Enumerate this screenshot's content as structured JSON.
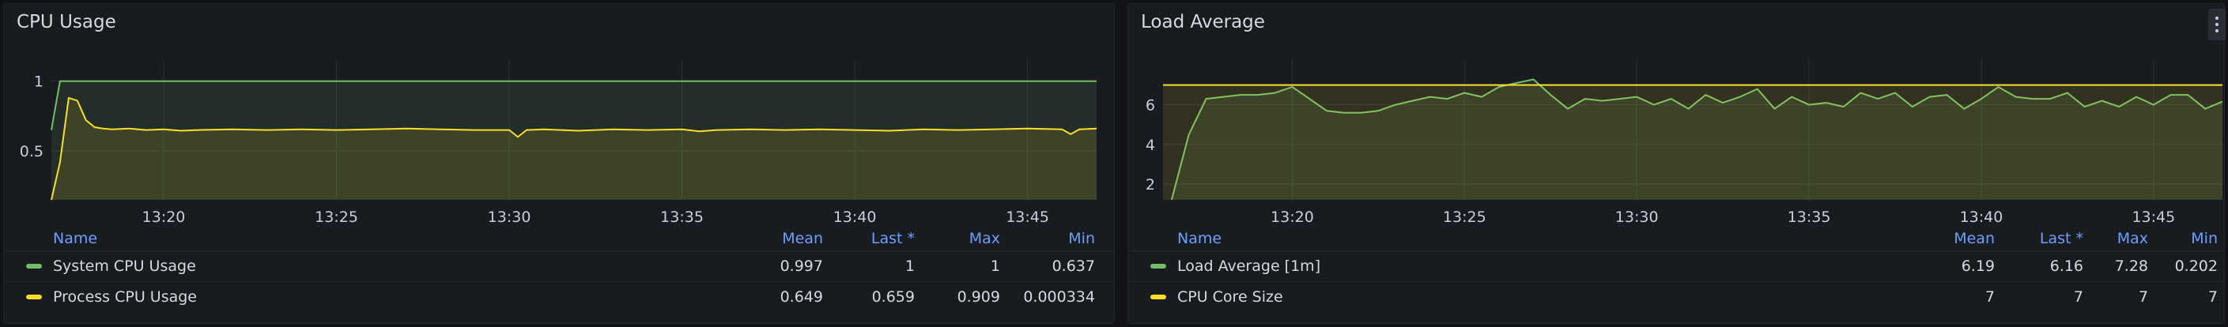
{
  "panels": {
    "cpu": {
      "title": "CPU Usage",
      "columns": {
        "name": "Name",
        "mean": "Mean",
        "last": "Last *",
        "max": "Max",
        "min": "Min"
      },
      "rows": [
        {
          "name": "System CPU Usage",
          "color": "#73bf69",
          "mean": "0.997",
          "last": "1",
          "max": "1",
          "min": "0.637"
        },
        {
          "name": "Process CPU Usage",
          "color": "#fade2a",
          "mean": "0.649",
          "last": "0.659",
          "max": "0.909",
          "min": "0.000334"
        }
      ]
    },
    "load": {
      "title": "Load Average",
      "menu_icon": "kebab-menu-icon",
      "columns": {
        "name": "Name",
        "mean": "Mean",
        "last": "Last *",
        "max": "Max",
        "min": "Min"
      },
      "rows": [
        {
          "name": "Load Average [1m]",
          "color": "#73bf69",
          "mean": "6.19",
          "last": "6.16",
          "max": "7.28",
          "min": "0.202"
        },
        {
          "name": "CPU Core Size",
          "color": "#fade2a",
          "mean": "7",
          "last": "7",
          "max": "7",
          "min": "7"
        }
      ]
    }
  },
  "chart_data": [
    {
      "type": "line",
      "title": "CPU Usage",
      "x_ticks": [
        "13:20",
        "13:25",
        "13:30",
        "13:35",
        "13:40",
        "13:45"
      ],
      "x_range": [
        "13:16:45",
        "13:47:00"
      ],
      "y_ticks": [
        "0.5",
        "1"
      ],
      "ylim": [
        0.15,
        1.1
      ],
      "grid": true,
      "legend_placement": "bottom",
      "series": [
        {
          "name": "System CPU Usage",
          "color": "#73bf69",
          "x": [
            "13:16:45",
            "13:17:00",
            "13:47:00"
          ],
          "values": [
            0.65,
            1.0,
            1.0
          ]
        },
        {
          "name": "Process CPU Usage",
          "color": "#fade2a",
          "x": [
            "13:16:45",
            "13:17:00",
            "13:17:15",
            "13:17:30",
            "13:17:45",
            "13:18:00",
            "13:18:15",
            "13:18:30",
            "13:19:00",
            "13:19:30",
            "13:20:00",
            "13:20:30",
            "13:21:00",
            "13:22:00",
            "13:23:00",
            "13:24:00",
            "13:25:00",
            "13:26:00",
            "13:27:00",
            "13:28:00",
            "13:29:00",
            "13:30:00",
            "13:30:15",
            "13:30:30",
            "13:31:00",
            "13:32:00",
            "13:33:00",
            "13:34:00",
            "13:35:00",
            "13:35:30",
            "13:36:00",
            "13:37:00",
            "13:38:00",
            "13:39:00",
            "13:40:00",
            "13:41:00",
            "13:42:00",
            "13:43:00",
            "13:44:00",
            "13:45:00",
            "13:46:00",
            "13:46:15",
            "13:46:30",
            "13:47:00"
          ],
          "values": [
            0.15,
            0.42,
            0.88,
            0.86,
            0.72,
            0.67,
            0.66,
            0.655,
            0.66,
            0.65,
            0.655,
            0.645,
            0.65,
            0.655,
            0.65,
            0.655,
            0.65,
            0.655,
            0.66,
            0.655,
            0.65,
            0.65,
            0.6,
            0.65,
            0.655,
            0.645,
            0.655,
            0.65,
            0.655,
            0.64,
            0.65,
            0.655,
            0.65,
            0.655,
            0.65,
            0.645,
            0.655,
            0.65,
            0.655,
            0.66,
            0.655,
            0.62,
            0.655,
            0.66
          ]
        }
      ]
    },
    {
      "type": "line",
      "title": "Load Average",
      "x_ticks": [
        "13:20",
        "13:25",
        "13:30",
        "13:35",
        "13:40",
        "13:45"
      ],
      "x_range": [
        "13:16:15",
        "13:47:00"
      ],
      "y_ticks": [
        "2",
        "4",
        "6"
      ],
      "ylim": [
        1.2,
        7.9
      ],
      "grid": true,
      "legend_placement": "bottom",
      "series": [
        {
          "name": "Load Average [1m]",
          "color": "#73bf69",
          "x": [
            "13:16:30",
            "13:17:00",
            "13:17:30",
            "13:18:00",
            "13:18:30",
            "13:19:00",
            "13:19:30",
            "13:20:00",
            "13:20:30",
            "13:21:00",
            "13:21:30",
            "13:22:00",
            "13:22:30",
            "13:23:00",
            "13:23:30",
            "13:24:00",
            "13:24:30",
            "13:25:00",
            "13:25:30",
            "13:26:00",
            "13:26:30",
            "13:27:00",
            "13:27:30",
            "13:28:00",
            "13:28:30",
            "13:29:00",
            "13:29:30",
            "13:30:00",
            "13:30:30",
            "13:31:00",
            "13:31:30",
            "13:32:00",
            "13:32:30",
            "13:33:00",
            "13:33:30",
            "13:34:00",
            "13:34:30",
            "13:35:00",
            "13:35:30",
            "13:36:00",
            "13:36:30",
            "13:37:00",
            "13:37:30",
            "13:38:00",
            "13:38:30",
            "13:39:00",
            "13:39:30",
            "13:40:00",
            "13:40:30",
            "13:41:00",
            "13:41:30",
            "13:42:00",
            "13:42:30",
            "13:43:00",
            "13:43:30",
            "13:44:00",
            "13:44:30",
            "13:45:00",
            "13:45:30",
            "13:46:00",
            "13:46:30",
            "13:47:00"
          ],
          "values": [
            1.2,
            4.5,
            6.3,
            6.4,
            6.5,
            6.5,
            6.6,
            6.9,
            6.3,
            5.7,
            5.6,
            5.6,
            5.7,
            6.0,
            6.2,
            6.4,
            6.3,
            6.6,
            6.4,
            6.9,
            7.1,
            7.28,
            6.5,
            5.8,
            6.3,
            6.2,
            6.3,
            6.4,
            6.0,
            6.3,
            5.8,
            6.5,
            6.1,
            6.4,
            6.8,
            5.8,
            6.4,
            6.0,
            6.1,
            5.9,
            6.6,
            6.3,
            6.6,
            5.9,
            6.4,
            6.5,
            5.8,
            6.3,
            6.9,
            6.4,
            6.3,
            6.3,
            6.6,
            5.9,
            6.2,
            5.9,
            6.4,
            6.0,
            6.5,
            6.5,
            5.8,
            6.16
          ]
        },
        {
          "name": "CPU Core Size",
          "color": "#fade2a",
          "x": [
            "13:16:15",
            "13:47:00"
          ],
          "values": [
            7,
            7
          ]
        }
      ]
    }
  ]
}
